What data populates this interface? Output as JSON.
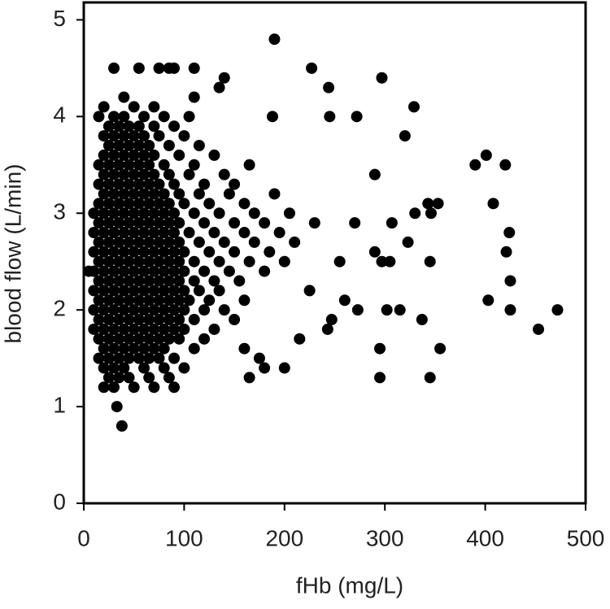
{
  "chart_data": {
    "type": "scatter",
    "x_label": "fHb (mg/L)",
    "y_label": "blood flow (L/min)",
    "xlim": [
      0,
      500
    ],
    "ylim": [
      0,
      5.18
    ],
    "xticks": [
      0,
      100,
      200,
      300,
      400,
      500
    ],
    "yticks": [
      0,
      1,
      2,
      3,
      4,
      5
    ],
    "color": "#000000",
    "points": [
      [
        20,
        1.2
      ],
      [
        30,
        1.2
      ],
      [
        50,
        1.2
      ],
      [
        70,
        1.2
      ],
      [
        90,
        1.2
      ],
      [
        25,
        1.3
      ],
      [
        35,
        1.3
      ],
      [
        45,
        1.3
      ],
      [
        65,
        1.3
      ],
      [
        85,
        1.3
      ],
      [
        20,
        1.4
      ],
      [
        30,
        1.4
      ],
      [
        40,
        1.4
      ],
      [
        60,
        1.4
      ],
      [
        80,
        1.4
      ],
      [
        100,
        1.4
      ],
      [
        15,
        1.5
      ],
      [
        25,
        1.5
      ],
      [
        35,
        1.5
      ],
      [
        45,
        1.5
      ],
      [
        55,
        1.5
      ],
      [
        65,
        1.5
      ],
      [
        75,
        1.5
      ],
      [
        90,
        1.5
      ],
      [
        20,
        1.6
      ],
      [
        30,
        1.6
      ],
      [
        40,
        1.6
      ],
      [
        50,
        1.6
      ],
      [
        60,
        1.6
      ],
      [
        70,
        1.6
      ],
      [
        80,
        1.6
      ],
      [
        110,
        1.6
      ],
      [
        15,
        1.7
      ],
      [
        25,
        1.7
      ],
      [
        35,
        1.7
      ],
      [
        45,
        1.7
      ],
      [
        55,
        1.7
      ],
      [
        65,
        1.7
      ],
      [
        75,
        1.7
      ],
      [
        85,
        1.7
      ],
      [
        95,
        1.7
      ],
      [
        120,
        1.7
      ],
      [
        10,
        1.8
      ],
      [
        20,
        1.8
      ],
      [
        30,
        1.8
      ],
      [
        40,
        1.8
      ],
      [
        50,
        1.8
      ],
      [
        60,
        1.8
      ],
      [
        70,
        1.8
      ],
      [
        80,
        1.8
      ],
      [
        90,
        1.8
      ],
      [
        100,
        1.8
      ],
      [
        130,
        1.8
      ],
      [
        15,
        1.9
      ],
      [
        25,
        1.9
      ],
      [
        35,
        1.9
      ],
      [
        45,
        1.9
      ],
      [
        55,
        1.9
      ],
      [
        65,
        1.9
      ],
      [
        75,
        1.9
      ],
      [
        85,
        1.9
      ],
      [
        95,
        1.9
      ],
      [
        110,
        1.9
      ],
      [
        150,
        1.9
      ],
      [
        10,
        2.0
      ],
      [
        20,
        2.0
      ],
      [
        30,
        2.0
      ],
      [
        40,
        2.0
      ],
      [
        50,
        2.0
      ],
      [
        60,
        2.0
      ],
      [
        70,
        2.0
      ],
      [
        80,
        2.0
      ],
      [
        90,
        2.0
      ],
      [
        100,
        2.0
      ],
      [
        120,
        2.0
      ],
      [
        140,
        2.0
      ],
      [
        15,
        2.1
      ],
      [
        25,
        2.1
      ],
      [
        35,
        2.1
      ],
      [
        45,
        2.1
      ],
      [
        55,
        2.1
      ],
      [
        65,
        2.1
      ],
      [
        75,
        2.1
      ],
      [
        85,
        2.1
      ],
      [
        95,
        2.1
      ],
      [
        105,
        2.1
      ],
      [
        125,
        2.1
      ],
      [
        160,
        2.1
      ],
      [
        10,
        2.2
      ],
      [
        20,
        2.2
      ],
      [
        30,
        2.2
      ],
      [
        40,
        2.2
      ],
      [
        50,
        2.2
      ],
      [
        60,
        2.2
      ],
      [
        70,
        2.2
      ],
      [
        80,
        2.2
      ],
      [
        90,
        2.2
      ],
      [
        100,
        2.2
      ],
      [
        115,
        2.2
      ],
      [
        135,
        2.2
      ],
      [
        15,
        2.3
      ],
      [
        25,
        2.3
      ],
      [
        35,
        2.3
      ],
      [
        45,
        2.3
      ],
      [
        55,
        2.3
      ],
      [
        65,
        2.3
      ],
      [
        75,
        2.3
      ],
      [
        85,
        2.3
      ],
      [
        95,
        2.3
      ],
      [
        110,
        2.3
      ],
      [
        130,
        2.3
      ],
      [
        155,
        2.3
      ],
      [
        10,
        2.4
      ],
      [
        20,
        2.4
      ],
      [
        30,
        2.4
      ],
      [
        40,
        2.4
      ],
      [
        50,
        2.4
      ],
      [
        60,
        2.4
      ],
      [
        70,
        2.4
      ],
      [
        80,
        2.4
      ],
      [
        90,
        2.4
      ],
      [
        100,
        2.4
      ],
      [
        120,
        2.4
      ],
      [
        145,
        2.4
      ],
      [
        180,
        2.4
      ],
      [
        15,
        2.5
      ],
      [
        25,
        2.5
      ],
      [
        35,
        2.5
      ],
      [
        45,
        2.5
      ],
      [
        55,
        2.5
      ],
      [
        65,
        2.5
      ],
      [
        75,
        2.5
      ],
      [
        85,
        2.5
      ],
      [
        95,
        2.5
      ],
      [
        110,
        2.5
      ],
      [
        135,
        2.5
      ],
      [
        165,
        2.5
      ],
      [
        200,
        2.5
      ],
      [
        10,
        2.6
      ],
      [
        20,
        2.6
      ],
      [
        30,
        2.6
      ],
      [
        40,
        2.6
      ],
      [
        50,
        2.6
      ],
      [
        60,
        2.6
      ],
      [
        70,
        2.6
      ],
      [
        80,
        2.6
      ],
      [
        90,
        2.6
      ],
      [
        100,
        2.6
      ],
      [
        125,
        2.6
      ],
      [
        150,
        2.6
      ],
      [
        185,
        2.6
      ],
      [
        15,
        2.7
      ],
      [
        25,
        2.7
      ],
      [
        35,
        2.7
      ],
      [
        45,
        2.7
      ],
      [
        55,
        2.7
      ],
      [
        65,
        2.7
      ],
      [
        75,
        2.7
      ],
      [
        85,
        2.7
      ],
      [
        95,
        2.7
      ],
      [
        115,
        2.7
      ],
      [
        140,
        2.7
      ],
      [
        170,
        2.7
      ],
      [
        210,
        2.7
      ],
      [
        10,
        2.8
      ],
      [
        20,
        2.8
      ],
      [
        30,
        2.8
      ],
      [
        40,
        2.8
      ],
      [
        50,
        2.8
      ],
      [
        60,
        2.8
      ],
      [
        70,
        2.8
      ],
      [
        80,
        2.8
      ],
      [
        90,
        2.8
      ],
      [
        105,
        2.8
      ],
      [
        130,
        2.8
      ],
      [
        160,
        2.8
      ],
      [
        195,
        2.8
      ],
      [
        15,
        2.9
      ],
      [
        25,
        2.9
      ],
      [
        35,
        2.9
      ],
      [
        45,
        2.9
      ],
      [
        55,
        2.9
      ],
      [
        65,
        2.9
      ],
      [
        75,
        2.9
      ],
      [
        85,
        2.9
      ],
      [
        95,
        2.9
      ],
      [
        120,
        2.9
      ],
      [
        150,
        2.9
      ],
      [
        180,
        2.9
      ],
      [
        230,
        2.9
      ],
      [
        10,
        3.0
      ],
      [
        20,
        3.0
      ],
      [
        30,
        3.0
      ],
      [
        40,
        3.0
      ],
      [
        50,
        3.0
      ],
      [
        60,
        3.0
      ],
      [
        70,
        3.0
      ],
      [
        80,
        3.0
      ],
      [
        90,
        3.0
      ],
      [
        110,
        3.0
      ],
      [
        135,
        3.0
      ],
      [
        170,
        3.0
      ],
      [
        205,
        3.0
      ],
      [
        15,
        3.1
      ],
      [
        25,
        3.1
      ],
      [
        35,
        3.1
      ],
      [
        45,
        3.1
      ],
      [
        55,
        3.1
      ],
      [
        65,
        3.1
      ],
      [
        75,
        3.1
      ],
      [
        85,
        3.1
      ],
      [
        100,
        3.1
      ],
      [
        125,
        3.1
      ],
      [
        160,
        3.1
      ],
      [
        20,
        3.2
      ],
      [
        30,
        3.2
      ],
      [
        40,
        3.2
      ],
      [
        50,
        3.2
      ],
      [
        60,
        3.2
      ],
      [
        70,
        3.2
      ],
      [
        80,
        3.2
      ],
      [
        95,
        3.2
      ],
      [
        115,
        3.2
      ],
      [
        145,
        3.2
      ],
      [
        190,
        3.2
      ],
      [
        15,
        3.3
      ],
      [
        25,
        3.3
      ],
      [
        35,
        3.3
      ],
      [
        45,
        3.3
      ],
      [
        55,
        3.3
      ],
      [
        65,
        3.3
      ],
      [
        75,
        3.3
      ],
      [
        90,
        3.3
      ],
      [
        120,
        3.3
      ],
      [
        150,
        3.3
      ],
      [
        20,
        3.4
      ],
      [
        30,
        3.4
      ],
      [
        40,
        3.4
      ],
      [
        50,
        3.4
      ],
      [
        60,
        3.4
      ],
      [
        70,
        3.4
      ],
      [
        85,
        3.4
      ],
      [
        105,
        3.4
      ],
      [
        140,
        3.4
      ],
      [
        15,
        3.5
      ],
      [
        25,
        3.5
      ],
      [
        35,
        3.5
      ],
      [
        45,
        3.5
      ],
      [
        55,
        3.5
      ],
      [
        65,
        3.5
      ],
      [
        80,
        3.5
      ],
      [
        110,
        3.5
      ],
      [
        165,
        3.5
      ],
      [
        20,
        3.6
      ],
      [
        30,
        3.6
      ],
      [
        40,
        3.6
      ],
      [
        50,
        3.6
      ],
      [
        60,
        3.6
      ],
      [
        70,
        3.6
      ],
      [
        95,
        3.6
      ],
      [
        130,
        3.6
      ],
      [
        25,
        3.7
      ],
      [
        35,
        3.7
      ],
      [
        45,
        3.7
      ],
      [
        55,
        3.7
      ],
      [
        65,
        3.7
      ],
      [
        85,
        3.7
      ],
      [
        115,
        3.7
      ],
      [
        20,
        3.8
      ],
      [
        30,
        3.8
      ],
      [
        40,
        3.8
      ],
      [
        50,
        3.8
      ],
      [
        60,
        3.8
      ],
      [
        75,
        3.8
      ],
      [
        100,
        3.8
      ],
      [
        25,
        3.9
      ],
      [
        35,
        3.9
      ],
      [
        45,
        3.9
      ],
      [
        55,
        3.9
      ],
      [
        70,
        3.9
      ],
      [
        90,
        3.9
      ],
      [
        15,
        4.0
      ],
      [
        30,
        4.0
      ],
      [
        40,
        4.0
      ],
      [
        60,
        4.0
      ],
      [
        80,
        4.0
      ],
      [
        105,
        4.0
      ],
      [
        20,
        4.1
      ],
      [
        50,
        4.1
      ],
      [
        70,
        4.1
      ],
      [
        40,
        4.2
      ],
      [
        110,
        4.2
      ],
      [
        135,
        4.3
      ],
      [
        140,
        4.4
      ],
      [
        30,
        4.5
      ],
      [
        55,
        4.5
      ],
      [
        75,
        4.5
      ],
      [
        85,
        4.5
      ],
      [
        90,
        4.5
      ],
      [
        110,
        4.5
      ],
      [
        38,
        0.8
      ],
      [
        33,
        1.0
      ],
      [
        5,
        2.4
      ],
      [
        190,
        4.8
      ],
      [
        227,
        4.5
      ],
      [
        297,
        4.4
      ],
      [
        244,
        4.3
      ],
      [
        329,
        4.1
      ],
      [
        245,
        4.0
      ],
      [
        272,
        4.0
      ],
      [
        188,
        4.0
      ],
      [
        320,
        3.8
      ],
      [
        390,
        3.5
      ],
      [
        401,
        3.6
      ],
      [
        420,
        3.5
      ],
      [
        290,
        3.4
      ],
      [
        408,
        3.1
      ],
      [
        343,
        3.1
      ],
      [
        353,
        3.1
      ],
      [
        330,
        3.0
      ],
      [
        346,
        3.0
      ],
      [
        307,
        2.9
      ],
      [
        424,
        2.8
      ],
      [
        421,
        2.6
      ],
      [
        323,
        2.7
      ],
      [
        290,
        2.6
      ],
      [
        297,
        2.5
      ],
      [
        305,
        2.5
      ],
      [
        345,
        2.5
      ],
      [
        425,
        2.3
      ],
      [
        403,
        2.1
      ],
      [
        243,
        1.8
      ],
      [
        247,
        1.9
      ],
      [
        273,
        2.0
      ],
      [
        302,
        2.0
      ],
      [
        315,
        2.0
      ],
      [
        337,
        1.9
      ],
      [
        425,
        2.0
      ],
      [
        472,
        2.0
      ],
      [
        453,
        1.8
      ],
      [
        355,
        1.6
      ],
      [
        295,
        1.6
      ],
      [
        295,
        1.3
      ],
      [
        345,
        1.3
      ],
      [
        165,
        1.3
      ],
      [
        180,
        1.4
      ],
      [
        200,
        1.4
      ],
      [
        215,
        1.7
      ],
      [
        175,
        1.5
      ],
      [
        160,
        1.6
      ],
      [
        225,
        2.2
      ],
      [
        260,
        2.1
      ],
      [
        255,
        2.5
      ],
      [
        270,
        2.9
      ]
    ]
  }
}
